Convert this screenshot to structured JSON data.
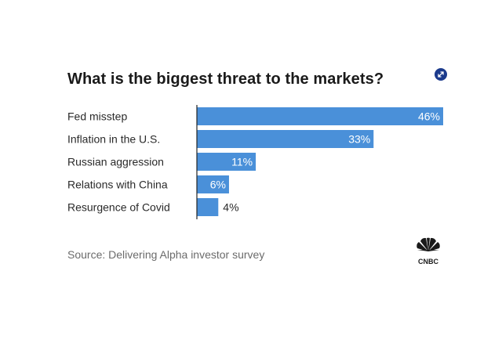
{
  "chart_data": {
    "type": "bar",
    "orientation": "horizontal",
    "title": "What is the biggest threat to the markets?",
    "categories": [
      "Fed misstep",
      "Inflation in the U.S.",
      "Russian aggression",
      "Relations with China",
      "Resurgence of Covid"
    ],
    "values": [
      46,
      33,
      11,
      6,
      4
    ],
    "value_labels": [
      "46%",
      "33%",
      "11%",
      "6%",
      "4%"
    ],
    "xlim": [
      0,
      46
    ],
    "bar_color": "#4a90d9",
    "xlabel": "",
    "ylabel": ""
  },
  "header": {
    "expand_icon": "expand-icon"
  },
  "footer": {
    "source": "Source: Delivering Alpha investor survey",
    "logo_text": "CNBC",
    "logo_icon": "cnbc-peacock-logo"
  }
}
